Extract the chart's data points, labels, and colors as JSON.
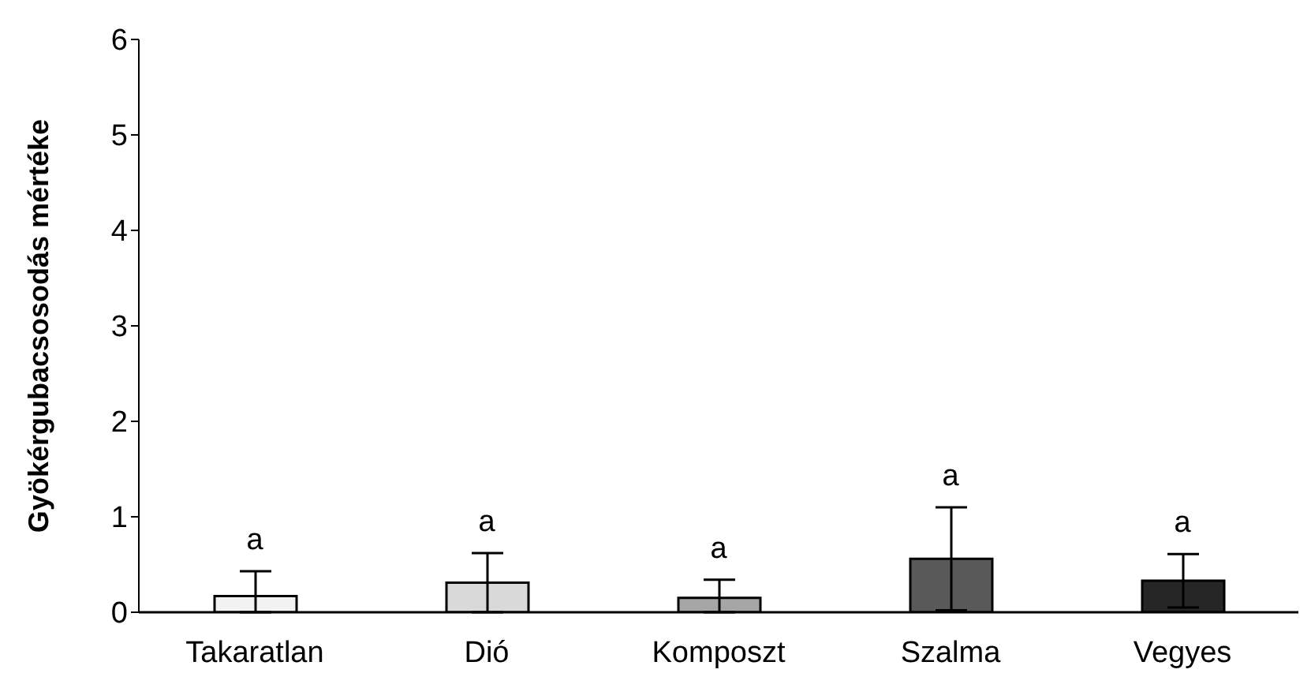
{
  "chart_data": {
    "type": "bar",
    "ylabel": "Gyökérgubacsosodás mértéke",
    "categories": [
      "Takaratlan",
      "Dió",
      "Komposzt",
      "Szalma",
      "Vegyes"
    ],
    "values": [
      0.17,
      0.31,
      0.15,
      0.56,
      0.33
    ],
    "errors": [
      [
        0,
        0.43
      ],
      0.31,
      [
        0,
        0.34
      ],
      0.54,
      0.28
    ],
    "colors": [
      "#f2f2f2",
      "#d9d9d9",
      "#a6a6a6",
      "#595959",
      "#262626"
    ],
    "ylim": [
      0,
      6
    ],
    "yticks": [
      0,
      1,
      2,
      3,
      4,
      5,
      6
    ],
    "grid": false,
    "annotations": [
      "a",
      "a",
      "a",
      "a",
      "a"
    ]
  }
}
